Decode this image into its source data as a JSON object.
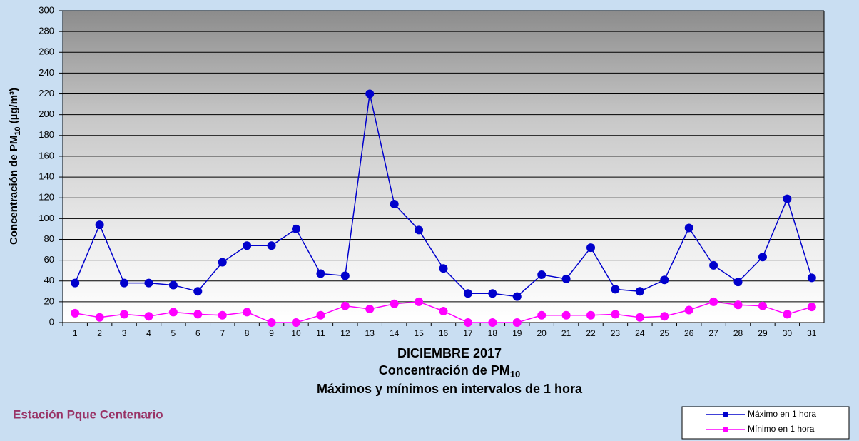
{
  "chart_data": {
    "type": "line",
    "title": "DICIEMBRE 2017",
    "subtitle": [
      "Concentración de PM",
      "10"
    ],
    "subtitle2": "Máximos y mínimos en intervalos de 1 hora",
    "y_label": [
      "Concentración de PM",
      "10",
      " (µg/m³)"
    ],
    "annotation": "Estación Pque Centenario",
    "categories": [
      "1",
      "2",
      "3",
      "4",
      "5",
      "6",
      "7",
      "8",
      "9",
      "10",
      "11",
      "12",
      "13",
      "14",
      "15",
      "16",
      "17",
      "18",
      "19",
      "20",
      "21",
      "22",
      "23",
      "24",
      "25",
      "26",
      "27",
      "28",
      "29",
      "30",
      "31"
    ],
    "series": [
      {
        "name": "Máximo en 1 hora",
        "color": "#0000cc",
        "values": [
          38,
          94,
          38,
          38,
          36,
          30,
          58,
          74,
          74,
          90,
          47,
          45,
          220,
          114,
          89,
          52,
          28,
          28,
          25,
          46,
          42,
          72,
          32,
          30,
          41,
          91,
          55,
          39,
          63,
          119,
          43
        ]
      },
      {
        "name": "Mínimo en 1 hora",
        "color": "#ff00ff",
        "values": [
          9,
          5,
          8,
          6,
          10,
          8,
          7,
          10,
          0,
          0,
          7,
          16,
          13,
          18,
          20,
          11,
          0,
          0,
          0,
          7,
          7,
          7,
          8,
          5,
          6,
          12,
          20,
          17,
          16,
          8,
          15
        ]
      }
    ],
    "ylim": [
      0,
      300
    ],
    "yticks": [
      0,
      20,
      40,
      60,
      80,
      100,
      120,
      140,
      160,
      180,
      200,
      220,
      240,
      260,
      280,
      300
    ],
    "grid": true,
    "legend": "bottom-right"
  }
}
